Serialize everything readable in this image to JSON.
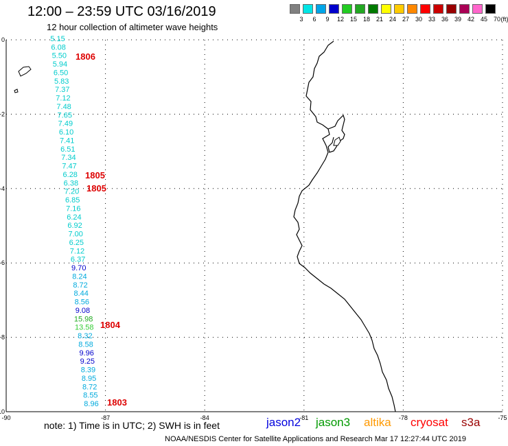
{
  "header": {
    "title": "12:00 – 23:59 UTC 03/16/2019",
    "subtitle": "12 hour collection of altimeter wave heights"
  },
  "legend": {
    "unit": "(ft)",
    "items": [
      {
        "label": "3",
        "color": "#808080"
      },
      {
        "label": "6",
        "color": "#00e5e5"
      },
      {
        "label": "9",
        "color": "#00a5e8"
      },
      {
        "label": "12",
        "color": "#0000cc"
      },
      {
        "label": "15",
        "color": "#22cc22"
      },
      {
        "label": "18",
        "color": "#22a822"
      },
      {
        "label": "21",
        "color": "#007a00"
      },
      {
        "label": "24",
        "color": "#ffff00"
      },
      {
        "label": "27",
        "color": "#ffcc00"
      },
      {
        "label": "30",
        "color": "#ff8800"
      },
      {
        "label": "33",
        "color": "#ff0000"
      },
      {
        "label": "36",
        "color": "#cc0000"
      },
      {
        "label": "39",
        "color": "#990000"
      },
      {
        "label": "42",
        "color": "#aa0055"
      },
      {
        "label": "45",
        "color": "#ff66cc"
      },
      {
        "label": "70",
        "color": "#000000"
      }
    ]
  },
  "map": {
    "lon_range": [
      -90,
      -75
    ],
    "lat_range": [
      -10,
      0
    ],
    "x_ticks": [
      "-90",
      "-87",
      "-84",
      "-81",
      "-78",
      "-75"
    ],
    "y_ticks": [
      "0",
      "-2",
      "-4",
      "-6",
      "-8",
      "-10"
    ],
    "time_labels": [
      "1806",
      "1805",
      "1805",
      "1804",
      "1803"
    ],
    "observations": [
      {
        "v": "5.15",
        "c": "#00cccc"
      },
      {
        "v": "6.08",
        "c": "#00cccc"
      },
      {
        "v": "5.50",
        "c": "#00cccc"
      },
      {
        "v": "5.94",
        "c": "#00cccc"
      },
      {
        "v": "6.50",
        "c": "#00cccc"
      },
      {
        "v": "5.83",
        "c": "#00cccc"
      },
      {
        "v": "7.37",
        "c": "#00cccc"
      },
      {
        "v": "7.12",
        "c": "#00cccc"
      },
      {
        "v": "7.48",
        "c": "#00cccc"
      },
      {
        "v": "7.65",
        "c": "#00cccc"
      },
      {
        "v": "7.49",
        "c": "#00cccc"
      },
      {
        "v": "6.10",
        "c": "#00cccc"
      },
      {
        "v": "7.41",
        "c": "#00cccc"
      },
      {
        "v": "6.51",
        "c": "#00cccc"
      },
      {
        "v": "7.34",
        "c": "#00cccc"
      },
      {
        "v": "7.47",
        "c": "#00cccc"
      },
      {
        "v": "6.28",
        "c": "#00cccc"
      },
      {
        "v": "6.38",
        "c": "#00cccc"
      },
      {
        "v": "7.20",
        "c": "#00cccc"
      },
      {
        "v": "6.85",
        "c": "#00cccc"
      },
      {
        "v": "7.16",
        "c": "#00cccc"
      },
      {
        "v": "6.24",
        "c": "#00cccc"
      },
      {
        "v": "6.92",
        "c": "#00cccc"
      },
      {
        "v": "7.00",
        "c": "#00cccc"
      },
      {
        "v": "6.25",
        "c": "#00cccc"
      },
      {
        "v": "7.12",
        "c": "#00cccc"
      },
      {
        "v": "6.37",
        "c": "#00cccc"
      },
      {
        "v": "9.70",
        "c": "#0000cc"
      },
      {
        "v": "8.24",
        "c": "#00aadd"
      },
      {
        "v": "8.72",
        "c": "#00aadd"
      },
      {
        "v": "8.44",
        "c": "#00aadd"
      },
      {
        "v": "8.56",
        "c": "#00aadd"
      },
      {
        "v": "9.08",
        "c": "#0000cc"
      },
      {
        "v": "15.98",
        "c": "#22aa22"
      },
      {
        "v": "13.58",
        "c": "#33cc33"
      },
      {
        "v": "8.32",
        "c": "#00aadd"
      },
      {
        "v": "8.58",
        "c": "#00aadd"
      },
      {
        "v": "9.96",
        "c": "#0000cc"
      },
      {
        "v": "9.25",
        "c": "#0000cc"
      },
      {
        "v": "8.39",
        "c": "#00aadd"
      },
      {
        "v": "8.95",
        "c": "#00aadd"
      },
      {
        "v": "8.72",
        "c": "#00aadd"
      },
      {
        "v": "8.55",
        "c": "#00aadd"
      },
      {
        "v": "8.96",
        "c": "#00aadd"
      }
    ]
  },
  "note": "note:  1) Time is in UTC;  2) SWH is in feet",
  "satellites": [
    {
      "name": "jason2",
      "color": "#0000dd"
    },
    {
      "name": "jason3",
      "color": "#009900"
    },
    {
      "name": "altika",
      "color": "#ff9900"
    },
    {
      "name": "cryosat",
      "color": "#ff0000"
    },
    {
      "name": "s3a",
      "color": "#990000"
    }
  ],
  "footer": "NOAA/NESDIS Center for Satellite Applications and Research    Mar 17 12:27:44 UTC 2019"
}
